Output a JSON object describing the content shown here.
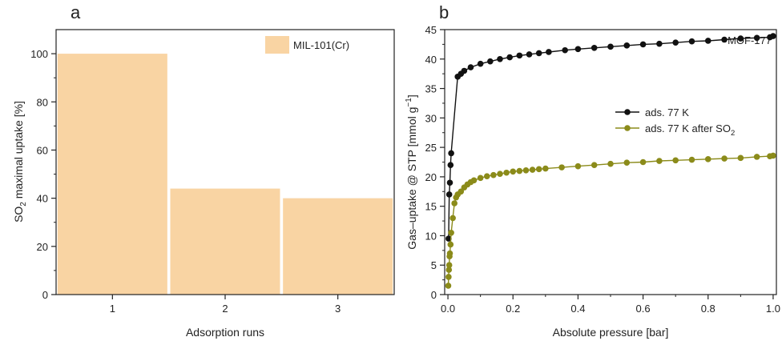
{
  "chart_data": [
    {
      "panel": "a",
      "type": "bar",
      "categories": [
        "1",
        "2",
        "3"
      ],
      "series": [
        {
          "name": "MIL-101(Cr)",
          "values": [
            100,
            44,
            40
          ],
          "color": "#F9D4A3"
        }
      ],
      "xlabel": "Adsorption runs",
      "ylabel_main": "SO",
      "ylabel_sub": "2",
      "ylabel_rest": " maximal uptake [%]",
      "ylim": [
        0,
        110
      ],
      "yticks": [
        "0",
        "20",
        "40",
        "60",
        "80",
        "100"
      ],
      "legend": "top-right"
    },
    {
      "panel": "b",
      "type": "line",
      "title": "MOF-177",
      "xlabel": "Absolute pressure [bar]",
      "ylabel_main": "Gas–uptake @ STP [mmol g",
      "ylabel_sup": "−1",
      "ylabel_end": "]",
      "xlim": [
        -0.01,
        1.01
      ],
      "ylim": [
        0,
        45
      ],
      "xticks": [
        "0.0",
        "0.2",
        "0.4",
        "0.6",
        "0.8",
        "1.0"
      ],
      "yticks": [
        "0",
        "5",
        "10",
        "15",
        "20",
        "25",
        "30",
        "35",
        "40",
        "45"
      ],
      "legend": "center-right",
      "series": [
        {
          "name": "ads. 77 K",
          "color": "#111111",
          "x": [
            0.002,
            0.004,
            0.006,
            0.008,
            0.01,
            0.03,
            0.04,
            0.05,
            0.07,
            0.1,
            0.13,
            0.16,
            0.19,
            0.22,
            0.25,
            0.28,
            0.31,
            0.36,
            0.4,
            0.45,
            0.5,
            0.55,
            0.6,
            0.65,
            0.7,
            0.75,
            0.8,
            0.85,
            0.9,
            0.95,
            0.99,
            1.0
          ],
          "y": [
            9.5,
            17,
            19,
            22,
            24,
            37,
            37.5,
            38,
            38.6,
            39.2,
            39.6,
            40,
            40.3,
            40.6,
            40.8,
            41,
            41.2,
            41.5,
            41.7,
            41.9,
            42.1,
            42.3,
            42.5,
            42.6,
            42.8,
            43,
            43.1,
            43.3,
            43.5,
            43.6,
            43.7,
            43.9
          ]
        },
        {
          "name_main": "ads. 77 K after SO",
          "name_sub": "2",
          "color": "#8B8B1A",
          "x": [
            0.001,
            0.002,
            0.003,
            0.004,
            0.005,
            0.006,
            0.008,
            0.01,
            0.015,
            0.02,
            0.025,
            0.03,
            0.04,
            0.05,
            0.06,
            0.07,
            0.08,
            0.1,
            0.12,
            0.14,
            0.16,
            0.18,
            0.2,
            0.22,
            0.24,
            0.26,
            0.28,
            0.3,
            0.35,
            0.4,
            0.45,
            0.5,
            0.55,
            0.6,
            0.65,
            0.7,
            0.75,
            0.8,
            0.85,
            0.9,
            0.95,
            0.99,
            1.0
          ],
          "y": [
            1.5,
            3,
            4.2,
            5,
            6.5,
            7,
            8.5,
            10.5,
            13,
            15.5,
            16.5,
            17,
            17.5,
            18.2,
            18.7,
            19.1,
            19.4,
            19.8,
            20.1,
            20.3,
            20.5,
            20.7,
            20.9,
            21,
            21.1,
            21.2,
            21.3,
            21.4,
            21.6,
            21.8,
            22,
            22.2,
            22.4,
            22.5,
            22.7,
            22.8,
            22.9,
            23,
            23.1,
            23.2,
            23.4,
            23.5,
            23.6
          ]
        }
      ]
    }
  ]
}
